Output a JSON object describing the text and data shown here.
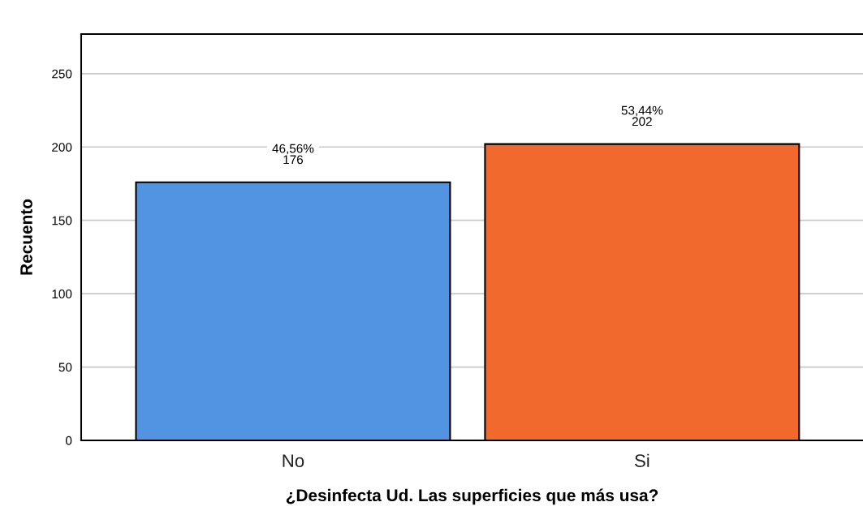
{
  "chart_data": {
    "type": "bar",
    "xlabel": "¿Desinfecta Ud. Las superficies que más usa?",
    "ylabel": "Recuento",
    "categories": [
      "No",
      "Si"
    ],
    "values": [
      176,
      202
    ],
    "colors": [
      "#5394e2",
      "#f1692c"
    ],
    "value_labels": [
      "46,56%\n176",
      "53,44%\n202"
    ],
    "ylim": [
      0,
      277
    ],
    "yticks": [
      0,
      50,
      100,
      150,
      200,
      250
    ],
    "grid": "y"
  }
}
